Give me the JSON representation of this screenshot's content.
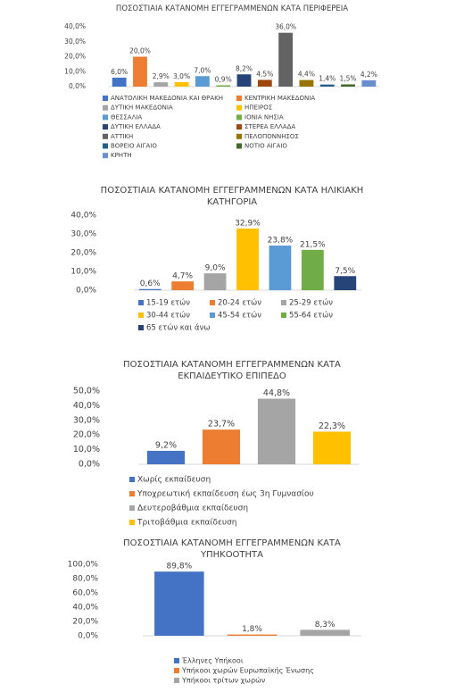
{
  "chart_data": [
    {
      "type": "bar",
      "title": "ΠΟΣΟΣΤΙΑΙΑ ΚΑΤΑΝΟΜΗ ΕΓΓΕΓΡΑΜΜΕΝΩΝ ΚΑΤΑ ΠΕΡΙΦΕΡΕΙΑ",
      "categories": [
        null
      ],
      "ylim": [
        0,
        40
      ],
      "yticks": [
        {
          "value": 0,
          "label": "0,0%"
        },
        {
          "value": 10,
          "label": "10,0%"
        },
        {
          "value": 20,
          "label": "20,0%"
        },
        {
          "value": 30,
          "label": "30,0%"
        },
        {
          "value": 40,
          "label": "40,0%"
        }
      ],
      "grid": false,
      "series": [
        {
          "name": "ΑΝΑΤΟΛΙΚΗ ΜΑΚΕΔΟΝΙΑ ΚΑΙ ΘΡΑΚΗ",
          "color": "#4472c4",
          "values": [
            6.0
          ],
          "value_labels": [
            "6,0%"
          ]
        },
        {
          "name": "ΚΕΝΤΡΙΚΗ ΜΑΚΕΔΟΝΙΑ",
          "color": "#ed7d31",
          "values": [
            20.0
          ],
          "value_labels": [
            "20,0%"
          ]
        },
        {
          "name": "ΔΥΤΙΚΗ ΜΑΚΕΔΟΝΙΑ",
          "color": "#a5a5a5",
          "values": [
            2.9
          ],
          "value_labels": [
            "2,9%"
          ]
        },
        {
          "name": "ΗΠΕΙΡΟΣ",
          "color": "#ffc000",
          "values": [
            3.0
          ],
          "value_labels": [
            "3,0%"
          ]
        },
        {
          "name": "ΘΕΣΣΑΛΙΑ",
          "color": "#5b9bd5",
          "values": [
            7.0
          ],
          "value_labels": [
            "7,0%"
          ]
        },
        {
          "name": "ΙΟΝΙΑ ΝΗΣΙΑ",
          "color": "#70ad47",
          "values": [
            0.9
          ],
          "value_labels": [
            "0,9%"
          ]
        },
        {
          "name": "ΔΥΤΙΚΗ ΕΛΛΑΔΑ",
          "color": "#264478",
          "values": [
            8.2
          ],
          "value_labels": [
            "8,2%"
          ]
        },
        {
          "name": "ΣΤΕΡΕΑ ΕΛΛΑΔΑ",
          "color": "#9e480e",
          "values": [
            4.5
          ],
          "value_labels": [
            "4,5%"
          ]
        },
        {
          "name": "ΑΤΤΙΚΗ",
          "color": "#636363",
          "values": [
            36.0
          ],
          "value_labels": [
            "36,0%"
          ]
        },
        {
          "name": "ΠΕΛΟΠΟΝΝΗΣΟΣ",
          "color": "#997300",
          "values": [
            4.4
          ],
          "value_labels": [
            "4,4%"
          ]
        },
        {
          "name": "ΒΟΡΕΙΟ ΑΙΓΑΙΟ",
          "color": "#255e91",
          "values": [
            1.4
          ],
          "value_labels": [
            "1,4%"
          ]
        },
        {
          "name": "ΝΟΤΙΟ ΑΙΓΑΙΟ",
          "color": "#43682b",
          "values": [
            1.5
          ],
          "value_labels": [
            "1,5%"
          ]
        },
        {
          "name": "ΚΡΗΤΗ",
          "color": "#698ed0",
          "values": [
            4.2
          ],
          "value_labels": [
            "4,2%"
          ]
        }
      ]
    },
    {
      "type": "bar",
      "title": "ΠΟΣΟΣΤΙΑΙΑ ΚΑΤΑΝΟΜΗ ΕΓΓΕΓΡΑΜΜΕΝΩΝ ΚΑΤΑ ΗΛΙΚΙΑΚΗ ΚΑΤΗΓΟΡΙΑ",
      "categories": [
        null
      ],
      "ylim": [
        0,
        40
      ],
      "yticks": [
        {
          "value": 0,
          "label": "0,0%"
        },
        {
          "value": 10,
          "label": "10,0%"
        },
        {
          "value": 20,
          "label": "20,0%"
        },
        {
          "value": 30,
          "label": "30,0%"
        },
        {
          "value": 40,
          "label": "40,0%"
        }
      ],
      "grid": false,
      "series": [
        {
          "name": "15-19 ετών",
          "color": "#4472c4",
          "values": [
            0.6
          ],
          "value_labels": [
            "0,6%"
          ]
        },
        {
          "name": "20-24 ετών",
          "color": "#ed7d31",
          "values": [
            4.7
          ],
          "value_labels": [
            "4,7%"
          ]
        },
        {
          "name": "25-29 ετών",
          "color": "#a5a5a5",
          "values": [
            9.0
          ],
          "value_labels": [
            "9,0%"
          ]
        },
        {
          "name": "30-44 ετών",
          "color": "#ffc000",
          "values": [
            32.9
          ],
          "value_labels": [
            "32,9%"
          ]
        },
        {
          "name": "45-54 ετών",
          "color": "#5b9bd5",
          "values": [
            23.8
          ],
          "value_labels": [
            "23,8%"
          ]
        },
        {
          "name": "55-64 ετών",
          "color": "#70ad47",
          "values": [
            21.5
          ],
          "value_labels": [
            "21,5%"
          ]
        },
        {
          "name": "65 ετών και άνω",
          "color": "#264478",
          "values": [
            7.5
          ],
          "value_labels": [
            "7,5%"
          ]
        }
      ]
    },
    {
      "type": "bar",
      "title": "ΠΟΣΟΣΤΙΑΙΑ ΚΑΤΑΝΟΜΗ ΕΓΓΕΓΡΑΜΜΕΝΩΝ ΚΑΤΑ ΕΚΠΑΙΔΕΥΤΙΚΟ ΕΠΙΠΕΔΟ",
      "categories": [
        null
      ],
      "ylim": [
        0,
        50
      ],
      "yticks": [
        {
          "value": 0,
          "label": "0,0%"
        },
        {
          "value": 10,
          "label": "10,0%"
        },
        {
          "value": 20,
          "label": "20,0%"
        },
        {
          "value": 30,
          "label": "30,0%"
        },
        {
          "value": 40,
          "label": "40,0%"
        },
        {
          "value": 50,
          "label": "50,0%"
        }
      ],
      "grid": false,
      "series": [
        {
          "name": "Χωρίς εκπαίδευση",
          "color": "#4472c4",
          "values": [
            9.2
          ],
          "value_labels": [
            "9,2%"
          ]
        },
        {
          "name": "Υποχρεωτική εκπαίδευση έως 3η Γυμνασίου",
          "color": "#ed7d31",
          "values": [
            23.7
          ],
          "value_labels": [
            "23,7%"
          ]
        },
        {
          "name": "Δευτεροβάθμια εκπαίδευση",
          "color": "#a5a5a5",
          "values": [
            44.8
          ],
          "value_labels": [
            "44,8%"
          ]
        },
        {
          "name": "Τριτοβάθμια εκπαίδευση",
          "color": "#ffc000",
          "values": [
            22.3
          ],
          "value_labels": [
            "22,3%"
          ]
        }
      ]
    },
    {
      "type": "bar",
      "title": "ΠΟΣΟΣΤΙΑΙΑ ΚΑΤΑΝΟΜΗ ΕΓΓΕΓΡΑΜΜΕΝΩΝ ΚΑΤΑ ΥΠΗΚΟΟΤΗΤΑ",
      "categories": [
        null
      ],
      "ylim": [
        0,
        100
      ],
      "yticks": [
        {
          "value": 0,
          "label": "0,0%"
        },
        {
          "value": 20,
          "label": "20,0%"
        },
        {
          "value": 40,
          "label": "40,0%"
        },
        {
          "value": 60,
          "label": "60,0%"
        },
        {
          "value": 80,
          "label": "80,0%"
        },
        {
          "value": 100,
          "label": "100,0%"
        }
      ],
      "grid": false,
      "series": [
        {
          "name": "Έλληνες Υπήκοοι",
          "color": "#4472c4",
          "values": [
            89.8
          ],
          "value_labels": [
            "89,8%"
          ]
        },
        {
          "name": "Υπήκοοι χωρών Ευρωπαϊκής Ένωσης",
          "color": "#ed7d31",
          "values": [
            1.8
          ],
          "value_labels": [
            "1,8%"
          ]
        },
        {
          "name": "Υπήκοοι τρίτων χωρών",
          "color": "#a5a5a5",
          "values": [
            8.3
          ],
          "value_labels": [
            "8,3%"
          ]
        }
      ]
    }
  ]
}
